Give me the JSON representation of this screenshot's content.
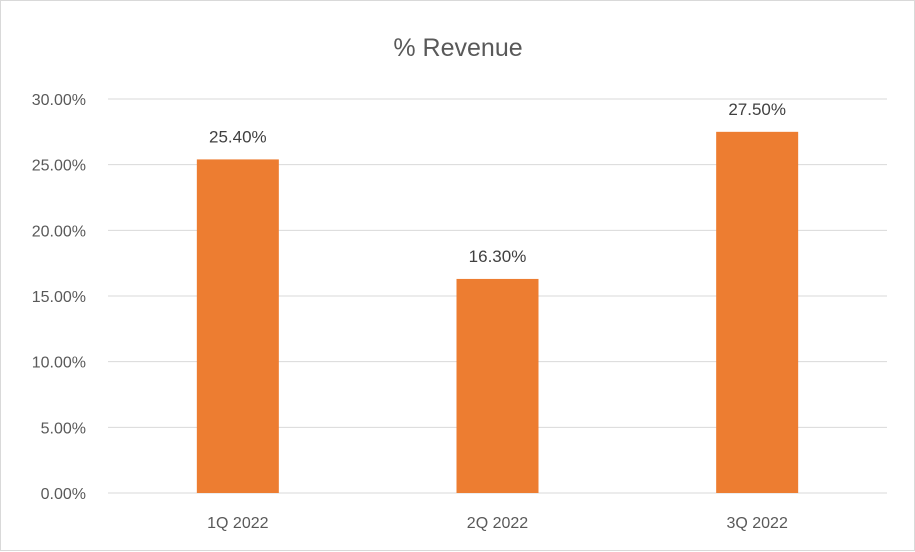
{
  "chart_data": {
    "type": "bar",
    "title": "% Revenue",
    "xlabel": "",
    "ylabel": "",
    "categories": [
      "1Q 2022",
      "2Q 2022",
      "3Q 2022"
    ],
    "values": [
      25.4,
      16.3,
      27.5
    ],
    "data_labels": [
      "25.40%",
      "16.30%",
      "27.50%"
    ],
    "ylim": [
      0,
      30
    ],
    "yticks": [
      0,
      5,
      10,
      15,
      20,
      25,
      30
    ],
    "ytick_labels": [
      "0.00%",
      "5.00%",
      "10.00%",
      "15.00%",
      "20.00%",
      "25.00%",
      "30.00%"
    ],
    "grid": true,
    "legend": "none",
    "bar_color": "#ED7D31"
  }
}
